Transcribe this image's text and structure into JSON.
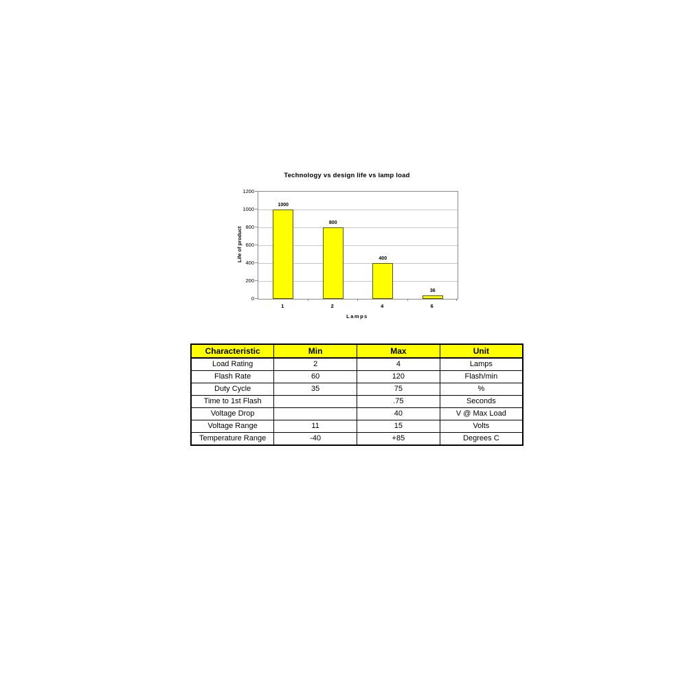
{
  "chart_data": [
    {
      "type": "bar",
      "title": "Technology vs design life vs lamp load",
      "categories": [
        "1",
        "2",
        "4",
        "6"
      ],
      "values": [
        1000,
        800,
        400,
        36
      ],
      "bar_labels": [
        "1000",
        "800",
        "400",
        "36"
      ],
      "xlabel": "Lamps",
      "ylabel": "Life of product",
      "ylim": [
        0,
        1200
      ],
      "yticks": [
        0,
        200,
        400,
        600,
        800,
        1000,
        1200
      ],
      "grid": true,
      "legend": "none",
      "bar_color": "#FFFF00",
      "bar_border_color": "#5a5400",
      "gridline_color": "#c6c6c6"
    },
    {
      "type": "table",
      "header": [
        "Characteristic",
        "Min",
        "Max",
        "Unit"
      ],
      "header_bg": "#FFFF00",
      "rows": [
        [
          "Load Rating",
          "2",
          "4",
          "Lamps"
        ],
        [
          "Flash Rate",
          "60",
          "120",
          "Flash/min"
        ],
        [
          "Duty Cycle",
          "35",
          "75",
          "%"
        ],
        [
          "Time to 1st Flash",
          "",
          ".75",
          "Seconds"
        ],
        [
          "Voltage Drop",
          "",
          "40",
          "V @ Max Load"
        ],
        [
          "Voltage Range",
          "11",
          "15",
          "Volts"
        ],
        [
          "Temperature Range",
          "-40",
          "+85",
          "Degrees C"
        ]
      ]
    }
  ]
}
